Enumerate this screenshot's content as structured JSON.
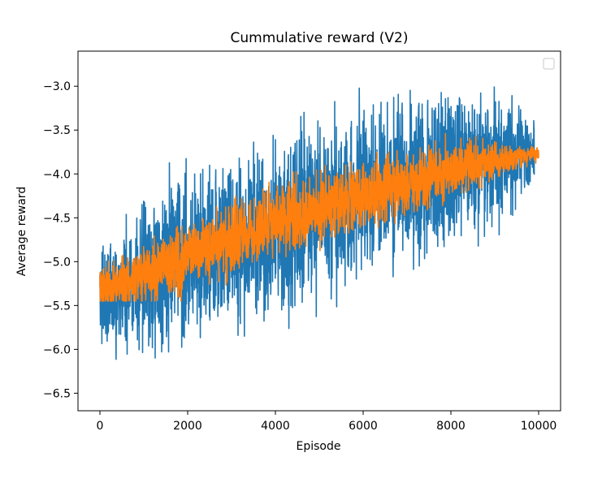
{
  "chart_data": {
    "type": "line",
    "title": "Cummulative reward (V2)",
    "xlabel": "Episode",
    "ylabel": "Average reward",
    "xlim": [
      -500,
      10500
    ],
    "ylim": [
      -6.7,
      -2.6
    ],
    "x_ticks": [
      0,
      2000,
      4000,
      6000,
      8000,
      10000
    ],
    "x_tick_labels": [
      "0",
      "2000",
      "4000",
      "6000",
      "8000",
      "10000"
    ],
    "y_ticks": [
      -6.5,
      -6.0,
      -5.5,
      -5.0,
      -4.5,
      -4.0,
      -3.5,
      -3.0
    ],
    "y_tick_labels": [
      "−6.5",
      "−6.0",
      "−5.5",
      "−5.0",
      "−4.5",
      "−4.0",
      "−3.5",
      "−3.0"
    ],
    "grid": false,
    "legend": {
      "placement": "top-right",
      "entries": []
    },
    "series": [
      {
        "color": "#1f77b4",
        "x_start": 0,
        "x_end": 9900,
        "trend": [
          [
            0,
            -5.4
          ],
          [
            2000,
            -4.95
          ],
          [
            4000,
            -4.6
          ],
          [
            6000,
            -4.25
          ],
          [
            8000,
            -3.95
          ],
          [
            9900,
            -3.75
          ]
        ],
        "spread": [
          [
            0,
            0.7
          ],
          [
            1000,
            1.3
          ],
          [
            4000,
            1.4
          ],
          [
            7000,
            1.3
          ],
          [
            9000,
            1.0
          ],
          [
            9900,
            0.6
          ]
        ],
        "observed_min": -6.48,
        "observed_max": -2.8
      },
      {
        "color": "#ff7f0e",
        "x_start": 0,
        "x_end": 10000,
        "trend": [
          [
            0,
            -5.35
          ],
          [
            2000,
            -4.95
          ],
          [
            4000,
            -4.55
          ],
          [
            6000,
            -4.25
          ],
          [
            8000,
            -3.95
          ],
          [
            10000,
            -3.75
          ]
        ],
        "spread": [
          [
            0,
            0.4
          ],
          [
            2000,
            0.55
          ],
          [
            5000,
            0.6
          ],
          [
            8000,
            0.45
          ],
          [
            10000,
            0.12
          ]
        ],
        "observed_min": -5.45,
        "observed_max": -3.35
      }
    ]
  }
}
